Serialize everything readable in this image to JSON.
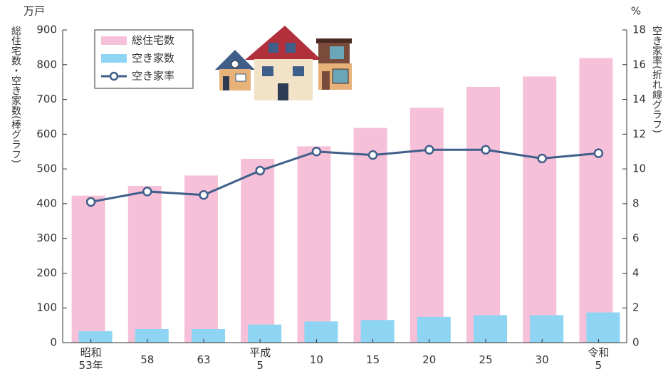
{
  "chart_data": {
    "type": "bar",
    "y_unit": "万戸",
    "y2_unit": "%",
    "y_label": "総住宅数・空き家数(棒グラフ)",
    "y2_label": "空き家率(折れ線グラフ)",
    "categories": [
      "昭和\n53年",
      "58",
      "63",
      "平成\n5",
      "10",
      "15",
      "20",
      "25",
      "30",
      "令和\n5"
    ],
    "series": [
      {
        "name": "総住宅数",
        "type": "bar",
        "color": "#f6c0d9",
        "values": [
          423,
          451,
          481,
          529,
          565,
          618,
          676,
          736,
          766,
          819
        ]
      },
      {
        "name": "空き家数",
        "type": "bar",
        "color": "#8dd5f3",
        "values": [
          33,
          39,
          39,
          52,
          61,
          65,
          74,
          79,
          79,
          87
        ]
      },
      {
        "name": "空き家率",
        "type": "line",
        "axis": "y2",
        "color": "#3f5e89",
        "values": [
          8.1,
          8.7,
          8.5,
          9.9,
          11.0,
          10.8,
          11.1,
          11.1,
          10.6,
          10.9
        ]
      }
    ],
    "ylim": [
      0,
      900
    ],
    "yticks": [
      0,
      100,
      200,
      300,
      400,
      500,
      600,
      700,
      800,
      900
    ],
    "y2lim": [
      0,
      18
    ],
    "y2ticks": [
      0,
      2,
      4,
      6,
      8,
      10,
      12,
      14,
      16,
      18
    ]
  }
}
